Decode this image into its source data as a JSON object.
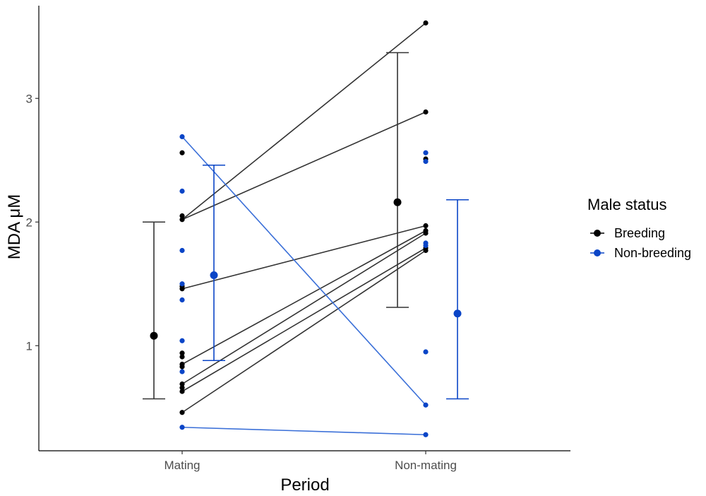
{
  "chart_data": {
    "type": "scatter",
    "xlabel": "Period",
    "ylabel": "MDA μM",
    "categories": [
      "Mating",
      "Non-mating"
    ],
    "yticks": [
      "1",
      "2",
      "3"
    ],
    "ylim": [
      0.15,
      3.75
    ],
    "grid": false,
    "legend": {
      "title": "Male status",
      "position": "right",
      "entries": [
        "Breeding",
        "Non-breeding"
      ]
    },
    "colors": {
      "Breeding": "#000000",
      "Non-breeding": "#0a45c7",
      "errorbar_breeding": "#333333",
      "line_breeding": "#333333",
      "line_nonbreeding": "#3a6fd8"
    },
    "points": {
      "Breeding": {
        "Mating": [
          2.56,
          2.05,
          2.02,
          1.48,
          1.46,
          0.94,
          0.91,
          0.85,
          0.83,
          0.69,
          0.66,
          0.63,
          0.46
        ],
        "Non-mating": [
          3.61,
          2.89,
          2.51,
          1.97,
          1.93,
          1.91,
          1.79,
          1.77
        ]
      },
      "Non-breeding": {
        "Mating": [
          2.69,
          2.25,
          1.77,
          1.5,
          1.37,
          1.04,
          0.79,
          0.34
        ],
        "Non-mating": [
          2.56,
          2.49,
          1.83,
          1.81,
          0.95,
          0.52,
          0.28
        ]
      }
    },
    "paired_lines": [
      {
        "group": "Breeding",
        "mating": 2.02,
        "non_mating": 3.61
      },
      {
        "group": "Breeding",
        "mating": 2.02,
        "non_mating": 2.89
      },
      {
        "group": "Breeding",
        "mating": 1.46,
        "non_mating": 1.97
      },
      {
        "group": "Breeding",
        "mating": 0.85,
        "non_mating": 1.93
      },
      {
        "group": "Breeding",
        "mating": 0.69,
        "non_mating": 1.91
      },
      {
        "group": "Breeding",
        "mating": 0.63,
        "non_mating": 1.79
      },
      {
        "group": "Breeding",
        "mating": 0.46,
        "non_mating": 1.77
      },
      {
        "group": "Non-breeding",
        "mating": 2.69,
        "non_mating": 0.52
      },
      {
        "group": "Non-breeding",
        "mating": 0.34,
        "non_mating": 0.28
      }
    ],
    "summary": [
      {
        "group": "Breeding",
        "period": "Mating",
        "mean": 1.08,
        "lower": 0.57,
        "upper": 2.0
      },
      {
        "group": "Non-breeding",
        "period": "Mating",
        "mean": 1.57,
        "lower": 0.88,
        "upper": 2.46
      },
      {
        "group": "Breeding",
        "period": "Non-mating",
        "mean": 2.16,
        "lower": 1.31,
        "upper": 3.37
      },
      {
        "group": "Non-breeding",
        "period": "Non-mating",
        "mean": 1.26,
        "lower": 0.57,
        "upper": 2.18
      }
    ]
  }
}
